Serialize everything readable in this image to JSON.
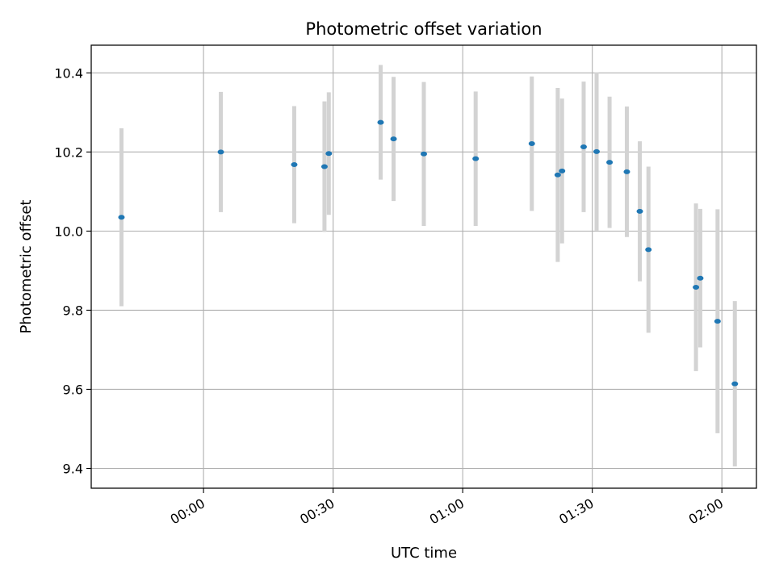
{
  "chart_data": {
    "type": "scatter",
    "title": "Photometric offset variation",
    "xlabel": "UTC time",
    "ylabel": "Photometric offset",
    "xlim": [
      "23:34",
      "02:08"
    ],
    "ylim": [
      9.35,
      10.47
    ],
    "xticks": [
      "00:00",
      "00:30",
      "01:00",
      "01:30",
      "02:00"
    ],
    "yticks": [
      "9.4",
      "9.6",
      "9.8",
      "10.0",
      "10.2",
      "10.4"
    ],
    "grid": true,
    "colors": {
      "points": "#1f77b4",
      "errorbars": "#d3d3d3",
      "grid": "#b0b0b0"
    },
    "points": [
      {
        "x": "23:41",
        "y": 10.035,
        "yerr": 0.225
      },
      {
        "x": "00:04",
        "y": 10.2,
        "yerr": 0.152
      },
      {
        "x": "00:21",
        "y": 10.168,
        "yerr": 0.148
      },
      {
        "x": "00:28",
        "y": 10.163,
        "yerr": 0.165
      },
      {
        "x": "00:29",
        "y": 10.196,
        "yerr": 0.155
      },
      {
        "x": "00:41",
        "y": 10.275,
        "yerr": 0.145
      },
      {
        "x": "00:44",
        "y": 10.233,
        "yerr": 0.157
      },
      {
        "x": "00:51",
        "y": 10.195,
        "yerr": 0.182
      },
      {
        "x": "01:03",
        "y": 10.183,
        "yerr": 0.17
      },
      {
        "x": "01:16",
        "y": 10.221,
        "yerr": 0.17
      },
      {
        "x": "01:22",
        "y": 10.142,
        "yerr": 0.22
      },
      {
        "x": "01:23",
        "y": 10.152,
        "yerr": 0.183
      },
      {
        "x": "01:28",
        "y": 10.213,
        "yerr": 0.165
      },
      {
        "x": "01:31",
        "y": 10.201,
        "yerr": 0.2
      },
      {
        "x": "01:34",
        "y": 10.174,
        "yerr": 0.166
      },
      {
        "x": "01:38",
        "y": 10.15,
        "yerr": 0.165
      },
      {
        "x": "01:41",
        "y": 10.05,
        "yerr": 0.177
      },
      {
        "x": "01:43",
        "y": 9.953,
        "yerr": 0.21
      },
      {
        "x": "01:54",
        "y": 9.858,
        "yerr": 0.212
      },
      {
        "x": "01:55",
        "y": 9.881,
        "yerr": 0.175
      },
      {
        "x": "01:59",
        "y": 9.772,
        "yerr": 0.283
      },
      {
        "x": "02:03",
        "y": 9.614,
        "yerr": 0.209
      }
    ]
  }
}
